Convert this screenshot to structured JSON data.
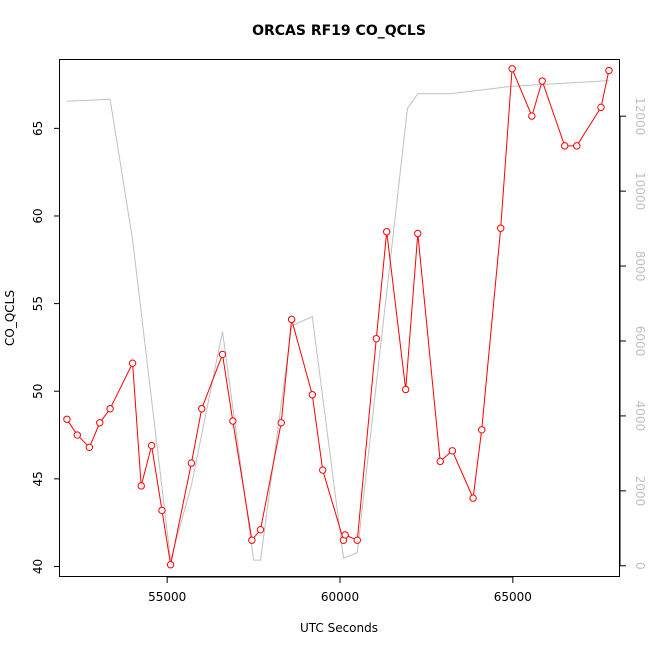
{
  "chart_data": {
    "type": "line",
    "title": "ORCAS RF19 CO_QCLS",
    "xlabel": "UTC Seconds",
    "ylabel": "CO_QCLS",
    "xlim": [
      51900,
      68100
    ],
    "ylim": [
      39.4,
      68.9
    ],
    "y2lim": [
      -300,
      13500
    ],
    "x_ticks": [
      55000,
      60000,
      65000
    ],
    "y_ticks": [
      40,
      45,
      50,
      55,
      60,
      65
    ],
    "y2_ticks": [
      0,
      2000,
      4000,
      6000,
      8000,
      10000,
      12000
    ],
    "grid": false,
    "series": [
      {
        "axis": "left",
        "color": "#ff0000",
        "marker": "open-circle",
        "x": [
          52100,
          52400,
          52750,
          53050,
          53350,
          54000,
          54250,
          54550,
          54850,
          55100,
          55700,
          56000,
          56600,
          56900,
          57450,
          57700,
          58300,
          58600,
          59200,
          59500,
          60100,
          60150,
          60500,
          61050,
          61350,
          61900,
          62250,
          62900,
          63250,
          63850,
          64100,
          64650,
          64980,
          65550,
          65850,
          66500,
          66850,
          67550,
          67780
        ],
        "y": [
          48.4,
          47.5,
          46.8,
          48.2,
          49.0,
          51.6,
          44.6,
          46.9,
          43.2,
          40.1,
          45.9,
          49.0,
          52.1,
          48.3,
          41.5,
          42.1,
          48.2,
          54.1,
          49.8,
          45.5,
          41.5,
          41.8,
          41.5,
          53.0,
          59.1,
          50.1,
          59.0,
          46.0,
          46.6,
          43.9,
          47.8,
          59.3,
          68.4,
          65.7,
          67.7,
          64.0,
          64.0,
          66.2,
          68.3
        ]
      },
      {
        "axis": "right",
        "color": "#c0c0c0",
        "marker": "none",
        "x": [
          52100,
          53350,
          54000,
          55100,
          55700,
          56600,
          57500,
          57700,
          58600,
          59200,
          60100,
          60500,
          61950,
          62250,
          63200,
          65000,
          67780
        ],
        "y": [
          12400,
          12450,
          8700,
          150,
          2150,
          6250,
          150,
          150,
          6400,
          6650,
          200,
          350,
          12200,
          12600,
          12600,
          12800,
          12950
        ]
      }
    ]
  }
}
